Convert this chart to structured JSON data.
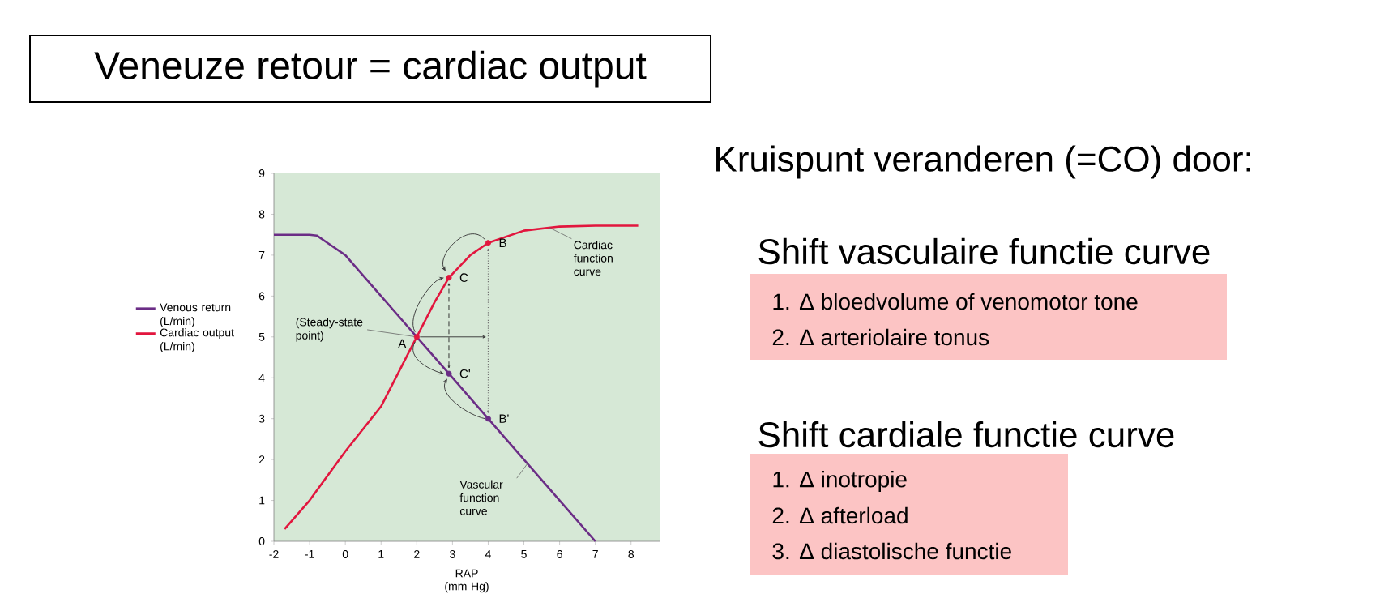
{
  "chart_data": {
    "type": "line",
    "title": "Veneuze retour = cardiac output",
    "xlabel": "RAP (mm Hg)",
    "xlim": [
      -2,
      8.8
    ],
    "ylim": [
      0,
      9
    ],
    "xticks": [
      -2,
      -1,
      0,
      1,
      2,
      3,
      4,
      5,
      6,
      7,
      8
    ],
    "yticks": [
      0,
      1,
      2,
      3,
      4,
      5,
      6,
      7,
      8,
      9
    ],
    "legend": "left",
    "series": [
      {
        "name": "Venous return (L/min)",
        "type": "line",
        "color": "#6b2d86",
        "x": [
          -2,
          -1,
          -0.8,
          -0.5,
          0,
          1,
          2,
          3,
          4,
          5,
          6,
          7
        ],
        "values": [
          7.5,
          7.5,
          7.48,
          7.3,
          7.0,
          6.0,
          5.0,
          4.0,
          3.0,
          2.0,
          1.0,
          0
        ]
      },
      {
        "name": "Cardiac output (L/min)",
        "type": "line",
        "color": "#e2163e",
        "x": [
          -1.7,
          -1,
          0,
          1,
          2,
          2.5,
          2.9,
          3.5,
          4,
          5,
          6,
          7,
          8.2
        ],
        "values": [
          0.3,
          1.0,
          2.2,
          3.3,
          5.0,
          5.85,
          6.45,
          7.0,
          7.3,
          7.6,
          7.7,
          7.72,
          7.72
        ]
      },
      {
        "name": "A",
        "type": "scatter",
        "marker": "circle",
        "color": "#e2163e",
        "x": [
          2
        ],
        "values": [
          5
        ]
      },
      {
        "name": "B",
        "type": "scatter",
        "marker": "circle",
        "color": "#e2163e",
        "x": [
          4
        ],
        "values": [
          7.3
        ]
      },
      {
        "name": "C",
        "type": "scatter",
        "marker": "circle",
        "color": "#e2163e",
        "x": [
          2.9
        ],
        "values": [
          6.45
        ]
      },
      {
        "name": "C'",
        "type": "scatter",
        "marker": "circle",
        "color": "#6b2d86",
        "x": [
          2.9
        ],
        "values": [
          4.1
        ]
      },
      {
        "name": "B'",
        "type": "scatter",
        "marker": "circle",
        "color": "#6b2d86",
        "x": [
          4
        ],
        "values": [
          3
        ]
      }
    ],
    "annotations": [
      {
        "text": "(Steady-state point)",
        "x": 2,
        "y": 5
      },
      {
        "text": "Cardiac function curve",
        "x": 5.7,
        "y": 7.68
      },
      {
        "text": "Vascular function curve",
        "x": 5.1,
        "y": 1.9
      },
      "Kruispunt veranderen (=CO) door:",
      "Shift vasculaire functie curve",
      "1. Δ bloedvolume of venomotor tone",
      "2. Δ arteriolaire tonus",
      "Shift cardiale functie curve",
      "1. Δ inotropie",
      "2. Δ afterload",
      "3. Δ diastolische functie"
    ]
  }
}
